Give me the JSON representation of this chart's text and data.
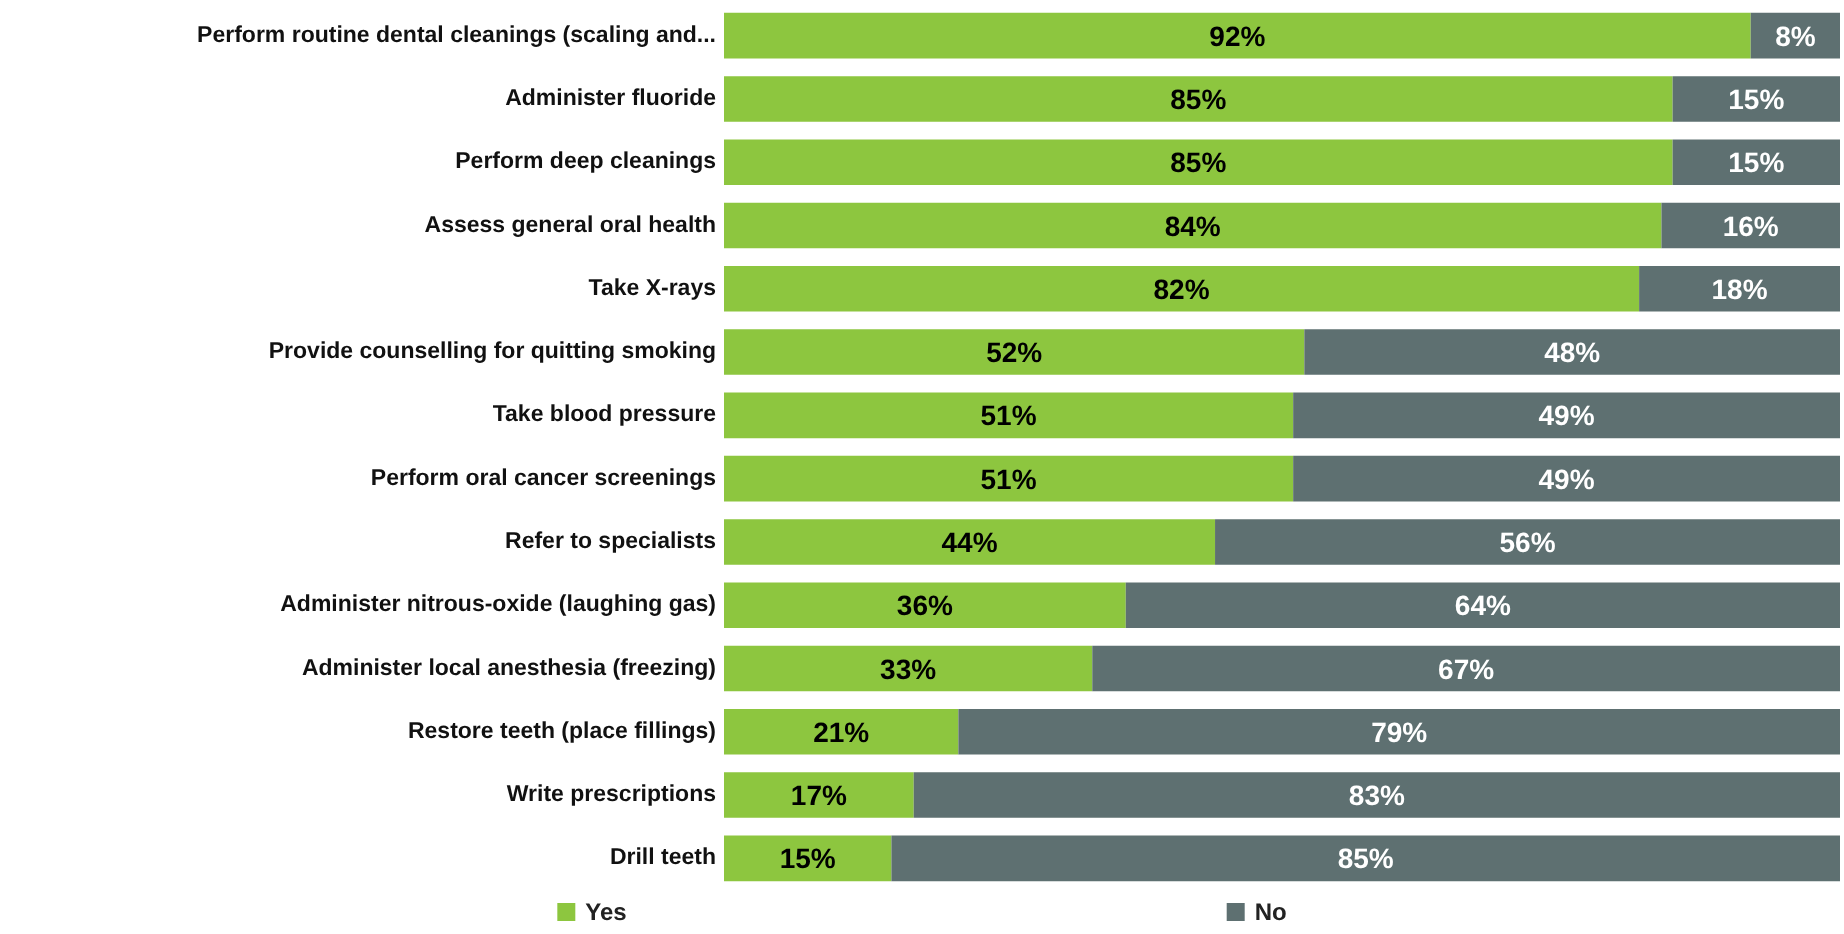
{
  "chart_data": {
    "type": "bar",
    "orientation": "horizontal",
    "stacked": true,
    "legend": "bottom",
    "categories": [
      "Perform routine dental cleanings (scaling and...",
      "Administer fluoride",
      "Perform deep cleanings",
      "Assess general oral health",
      "Take X-rays",
      "Provide counselling for quitting smoking",
      "Take blood pressure",
      "Perform oral cancer screenings",
      "Refer to specialists",
      "Administer nitrous-oxide (laughing gas)",
      "Administer local anesthesia (freezing)",
      "Restore teeth (place fillings)",
      "Write prescriptions",
      "Drill teeth"
    ],
    "xlim": [
      0,
      100
    ],
    "series": [
      {
        "name": "Yes",
        "color": "#8dc63f",
        "values": [
          92,
          85,
          85,
          84,
          82,
          52,
          51,
          51,
          44,
          36,
          33,
          21,
          17,
          15
        ],
        "value_labels": [
          "92%",
          "85%",
          "85%",
          "84%",
          "82%",
          "52%",
          "51%",
          "51%",
          "44%",
          "36%",
          "33%",
          "21%",
          "17%",
          "15%"
        ]
      },
      {
        "name": "No",
        "color": "#5e7071",
        "values": [
          8,
          15,
          15,
          16,
          18,
          48,
          49,
          49,
          56,
          64,
          67,
          79,
          83,
          85
        ],
        "value_labels": [
          "8%",
          "15%",
          "15%",
          "16%",
          "18%",
          "48%",
          "49%",
          "49%",
          "56%",
          "64%",
          "67%",
          "79%",
          "83%",
          "85%"
        ]
      }
    ]
  }
}
